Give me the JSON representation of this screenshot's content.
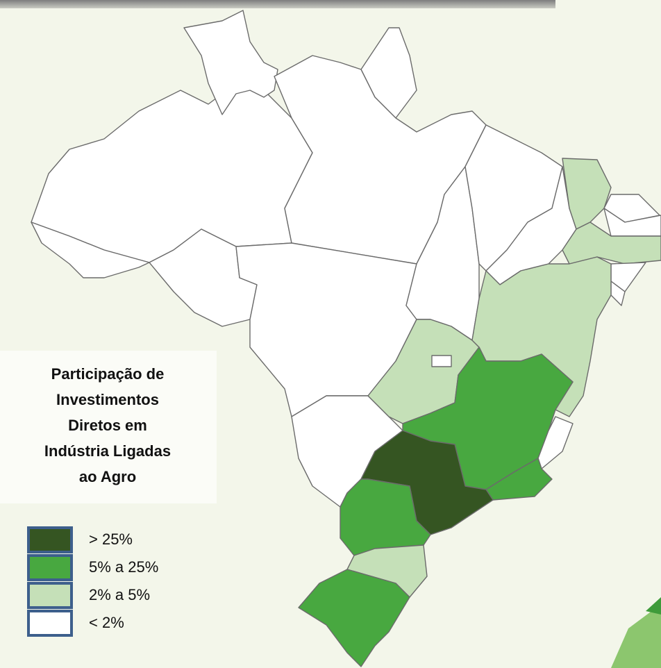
{
  "legend": {
    "title": [
      "Participação de",
      "Investimentos",
      "Diretos em",
      "Indústria Ligadas",
      "ao Agro"
    ],
    "items": [
      {
        "label": "> 25%",
        "color": "#355522"
      },
      {
        "label": "5% a 25%",
        "color": "#48a840"
      },
      {
        "label": "2% a 5%",
        "color": "#c5e0b8"
      },
      {
        "label": "< 2%",
        "color": "#ffffff"
      }
    ]
  }
}
